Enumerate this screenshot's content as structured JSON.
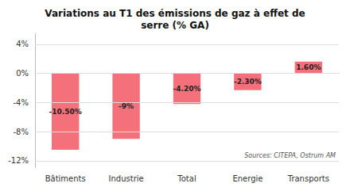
{
  "chart_data": {
    "type": "bar",
    "title": "Variations au T1 des émissions de gaz à effet de\nserre (% GA)",
    "categories": [
      "Bâtiments",
      "Industrie",
      "Total",
      "Energie",
      "Transports"
    ],
    "values": [
      -10.5,
      -9.0,
      -4.2,
      -2.3,
      1.6
    ],
    "value_labels": [
      "-10.50%",
      "-9%",
      "-4.20%",
      "-2.30%",
      "1.60%"
    ],
    "data_labels": true,
    "color": "#F4707A",
    "ylim": [
      -13,
      5.5
    ],
    "yticks": [
      {
        "value": -12,
        "label": "-12%"
      },
      {
        "value": -8,
        "label": "-8%"
      },
      {
        "value": -4,
        "label": "-4%"
      },
      {
        "value": 0,
        "label": "0%"
      },
      {
        "value": 4,
        "label": "4%"
      }
    ],
    "grid": true,
    "annotation": "Sources: CITEPA, Ostrum AM"
  }
}
